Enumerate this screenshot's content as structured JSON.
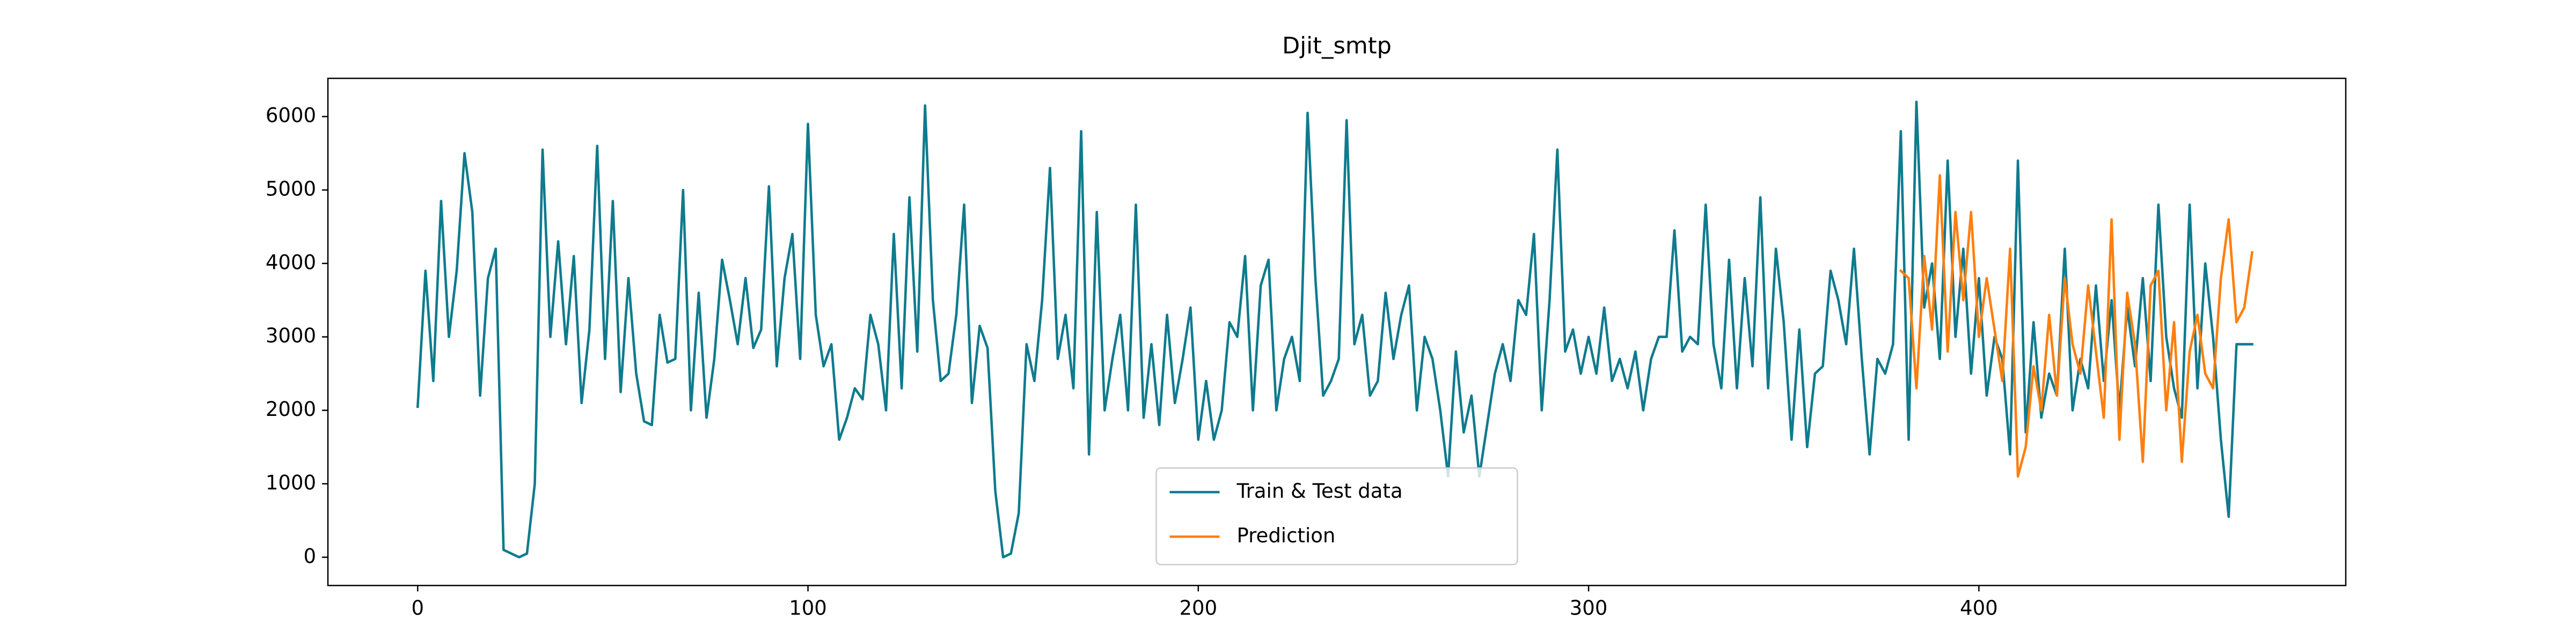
{
  "chart_data": {
    "type": "line",
    "title": "Djit_smtp",
    "x": [
      0,
      2,
      4,
      6,
      8,
      10,
      12,
      14,
      16,
      18,
      20,
      22,
      24,
      26,
      28,
      30,
      32,
      34,
      36,
      38,
      40,
      42,
      44,
      46,
      48,
      50,
      52,
      54,
      56,
      58,
      60,
      62,
      64,
      66,
      68,
      70,
      72,
      74,
      76,
      78,
      80,
      82,
      84,
      86,
      88,
      90,
      92,
      94,
      96,
      98,
      100,
      102,
      104,
      106,
      108,
      110,
      112,
      114,
      116,
      118,
      120,
      122,
      124,
      126,
      128,
      130,
      132,
      134,
      136,
      138,
      140,
      142,
      144,
      146,
      148,
      150,
      152,
      154,
      156,
      158,
      160,
      162,
      164,
      166,
      168,
      170,
      172,
      174,
      176,
      178,
      180,
      182,
      184,
      186,
      188,
      190,
      192,
      194,
      196,
      198,
      200,
      202,
      204,
      206,
      208,
      210,
      212,
      214,
      216,
      218,
      220,
      222,
      224,
      226,
      228,
      230,
      232,
      234,
      236,
      238,
      240,
      242,
      244,
      246,
      248,
      250,
      252,
      254,
      256,
      258,
      260,
      262,
      264,
      266,
      268,
      270,
      272,
      274,
      276,
      278,
      280,
      282,
      284,
      286,
      288,
      290,
      292,
      294,
      296,
      298,
      300,
      302,
      304,
      306,
      308,
      310,
      312,
      314,
      316,
      318,
      320,
      322,
      324,
      326,
      328,
      330,
      332,
      334,
      336,
      338,
      340,
      342,
      344,
      346,
      348,
      350,
      352,
      354,
      356,
      358,
      360,
      362,
      364,
      366,
      368,
      370,
      372,
      374,
      376,
      378,
      380,
      382,
      384,
      386,
      388,
      390,
      392,
      394,
      396,
      398,
      400,
      402,
      404,
      406,
      408,
      410,
      412,
      414,
      416,
      418,
      420,
      422,
      424,
      426,
      428,
      430,
      432,
      434,
      436,
      438,
      440,
      442,
      444,
      446,
      448,
      450,
      452,
      454,
      456,
      458,
      460,
      462,
      464,
      466,
      468,
      470
    ],
    "series": [
      {
        "name": "Train & Test data",
        "color": "#0f7b8e",
        "values": [
          2050,
          3900,
          2400,
          4850,
          3000,
          3900,
          5500,
          4700,
          2200,
          3800,
          4200,
          100,
          50,
          0,
          50,
          1000,
          5550,
          3000,
          4300,
          2900,
          4100,
          2100,
          3100,
          5600,
          2700,
          4850,
          2250,
          3800,
          2500,
          1850,
          1800,
          3300,
          2650,
          2700,
          5000,
          2000,
          3600,
          1900,
          2700,
          4050,
          3500,
          2900,
          3800,
          2850,
          3100,
          5050,
          2600,
          3800,
          4400,
          2700,
          5900,
          3300,
          2600,
          2900,
          1600,
          1900,
          2300,
          2150,
          3300,
          2900,
          2000,
          4400,
          2300,
          4900,
          2800,
          6150,
          3500,
          2400,
          2500,
          3300,
          4800,
          2100,
          3150,
          2850,
          900,
          0,
          50,
          600,
          2900,
          2400,
          3500,
          5300,
          2700,
          3300,
          2300,
          5800,
          1400,
          4700,
          2000,
          2700,
          3300,
          2000,
          4800,
          1900,
          2900,
          1800,
          3300,
          2100,
          2700,
          3400,
          1600,
          2400,
          1600,
          2000,
          3200,
          3000,
          4100,
          2000,
          3700,
          4050,
          2000,
          2700,
          3000,
          2400,
          6050,
          3800,
          2200,
          2400,
          2700,
          5950,
          2900,
          3300,
          2200,
          2400,
          3600,
          2700,
          3300,
          3700,
          2000,
          3000,
          2700,
          2000,
          1100,
          2800,
          1700,
          2200,
          1100,
          1800,
          2500,
          2900,
          2400,
          3500,
          3300,
          4400,
          2000,
          3500,
          5550,
          2800,
          3100,
          2500,
          3000,
          2500,
          3400,
          2400,
          2700,
          2300,
          2800,
          2000,
          2700,
          3000,
          3000,
          4450,
          2800,
          3000,
          2900,
          4800,
          2900,
          2300,
          4050,
          2300,
          3800,
          2600,
          4900,
          2300,
          4200,
          3200,
          1600,
          3100,
          1500,
          2500,
          2600,
          3900,
          3500,
          2900,
          4200,
          2700,
          1400,
          2700,
          2500,
          2900,
          5800,
          1600,
          6200,
          3400,
          4000,
          2700,
          5400,
          3000,
          4200,
          2500,
          3800,
          2200,
          3000,
          2700,
          1400,
          5400,
          1700,
          3200,
          1900,
          2500,
          2200,
          4200,
          2000,
          2700,
          2300,
          3700,
          2400,
          3500,
          2000,
          3400,
          2600,
          3800,
          2400,
          4800,
          3000,
          2300,
          1900,
          4800,
          2300,
          4000,
          3000,
          1600,
          550,
          2900,
          2900,
          2900
        ]
      },
      {
        "name": "Prediction",
        "color": "#ff7f0e",
        "values": [
          null,
          null,
          null,
          null,
          null,
          null,
          null,
          null,
          null,
          null,
          null,
          null,
          null,
          null,
          null,
          null,
          null,
          null,
          null,
          null,
          null,
          null,
          null,
          null,
          null,
          null,
          null,
          null,
          null,
          null,
          null,
          null,
          null,
          null,
          null,
          null,
          null,
          null,
          null,
          null,
          null,
          null,
          null,
          null,
          null,
          null,
          null,
          null,
          null,
          null,
          null,
          null,
          null,
          null,
          null,
          null,
          null,
          null,
          null,
          null,
          null,
          null,
          null,
          null,
          null,
          null,
          null,
          null,
          null,
          null,
          null,
          null,
          null,
          null,
          null,
          null,
          null,
          null,
          null,
          null,
          null,
          null,
          null,
          null,
          null,
          null,
          null,
          null,
          null,
          null,
          null,
          null,
          null,
          null,
          null,
          null,
          null,
          null,
          null,
          null,
          null,
          null,
          null,
          null,
          null,
          null,
          null,
          null,
          null,
          null,
          null,
          null,
          null,
          null,
          null,
          null,
          null,
          null,
          null,
          null,
          null,
          null,
          null,
          null,
          null,
          null,
          null,
          null,
          null,
          null,
          null,
          null,
          null,
          null,
          null,
          null,
          null,
          null,
          null,
          null,
          null,
          null,
          null,
          null,
          null,
          null,
          null,
          null,
          null,
          null,
          null,
          null,
          null,
          null,
          null,
          null,
          null,
          null,
          null,
          null,
          null,
          null,
          null,
          null,
          null,
          null,
          null,
          null,
          null,
          null,
          null,
          null,
          null,
          null,
          null,
          null,
          null,
          null,
          null,
          null,
          null,
          null,
          null,
          null,
          null,
          null,
          null,
          null,
          null,
          null,
          3900,
          3800,
          2300,
          4100,
          3100,
          5200,
          2800,
          4700,
          3500,
          4700,
          3000,
          3800,
          3100,
          2400,
          4200,
          1100,
          1500,
          2600,
          2000,
          3300,
          2200,
          3800,
          2900,
          2500,
          3700,
          2800,
          1900,
          4600,
          1600,
          3600,
          2900,
          1300,
          3700,
          3900,
          2000,
          3200,
          1300,
          2800,
          3300,
          2500,
          2300,
          3800,
          4600,
          3200,
          3400,
          4150
        ]
      }
    ],
    "xlim": [
      -23,
      494
    ],
    "xticks": [
      0,
      100,
      200,
      300,
      400
    ],
    "ylim": [
      -385,
      6520
    ],
    "yticks": [
      0,
      1000,
      2000,
      3000,
      4000,
      5000,
      6000
    ],
    "legend": "lower center"
  }
}
